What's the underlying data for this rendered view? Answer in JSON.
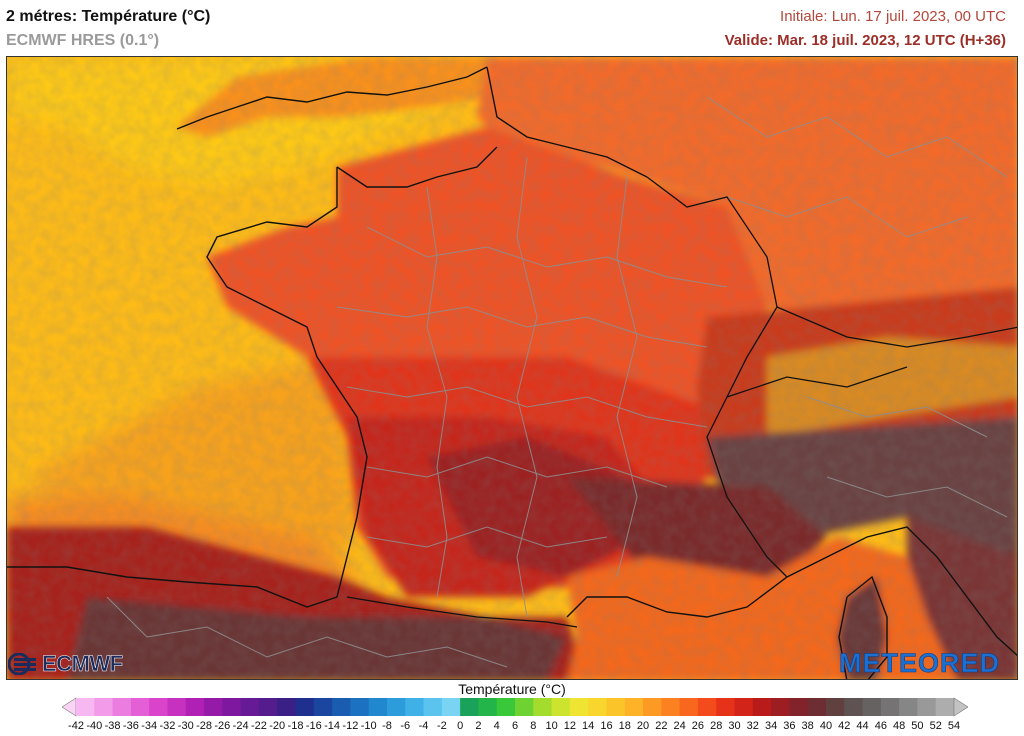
{
  "header": {
    "title": "2 métres: Température (°C)",
    "subtitle": "ECMWF HRES (0.1°)",
    "initiale": "Initiale: Lun. 17 juil. 2023, 00 UTC",
    "valide": "Valide: Mar. 18 juil. 2023, 12 UTC (H+36)"
  },
  "logos": {
    "ecmwf": "ECMWF",
    "meteored": "METEORED"
  },
  "legend": {
    "title": "Température (°C)",
    "ticks": [
      -42,
      -40,
      -38,
      -36,
      -34,
      -32,
      -30,
      -28,
      -26,
      -24,
      -22,
      -20,
      -18,
      -16,
      -14,
      -12,
      -10,
      -8,
      -6,
      -4,
      -2,
      0,
      2,
      4,
      6,
      8,
      10,
      12,
      14,
      16,
      18,
      20,
      22,
      24,
      26,
      28,
      30,
      32,
      34,
      36,
      38,
      40,
      42,
      44,
      46,
      48,
      50,
      52,
      54
    ],
    "colors": [
      "#fbd4f5",
      "#f7b7f0",
      "#f29be9",
      "#ec7de0",
      "#e45fd6",
      "#d944cb",
      "#c631c0",
      "#b020b4",
      "#961aa8",
      "#7d189f",
      "#661a96",
      "#541c8c",
      "#3a1f87",
      "#1f2f8e",
      "#1a469f",
      "#1a5cb0",
      "#1c72c0",
      "#2187ce",
      "#2d9cdb",
      "#40b1e6",
      "#5ac4ee",
      "#78d4f2",
      "#1aa25a",
      "#23b54a",
      "#39c83a",
      "#6fd233",
      "#a4dc2e",
      "#cde42e",
      "#eee431",
      "#f8d62e",
      "#fbc52a",
      "#fdb227",
      "#fd9a24",
      "#fc8120",
      "#f9661d",
      "#f34b1b",
      "#e7321a",
      "#d22419",
      "#b81b1a",
      "#9c1d22",
      "#82222a",
      "#6e2d33",
      "#614040",
      "#5e5252",
      "#666262",
      "#757373",
      "#878686",
      "#9a9999",
      "#adadad",
      "#c3c3c3"
    ]
  },
  "map": {
    "region": "France",
    "land_colors": {
      "atlantic": "#fdbb18",
      "north_land": "#f4642a",
      "center": "#ec4a24",
      "south_west": "#c92a1e",
      "south_inland": "#8e2320",
      "mountains": "#5c4848",
      "mediterranean": "#f4641f",
      "alps": "#d04a1c"
    }
  }
}
